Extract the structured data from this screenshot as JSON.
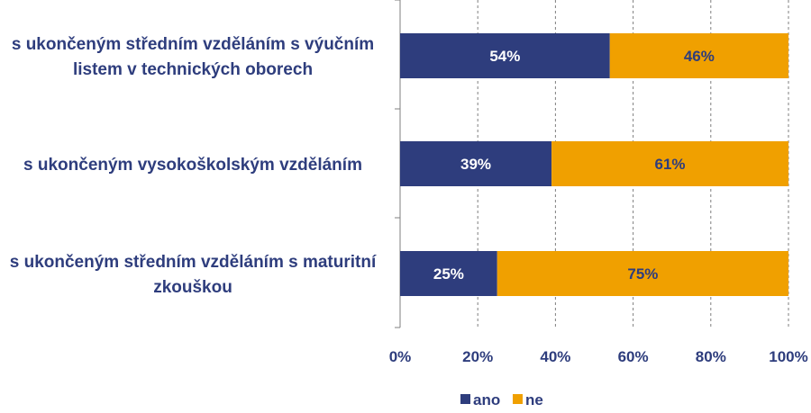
{
  "chart_data": {
    "type": "bar",
    "orientation": "horizontal",
    "stacked": true,
    "categories": [
      [
        "s ukončeným středním vzděláním s výučním",
        "listem v technických oborech"
      ],
      [
        "s ukončeným vysokoškolským vzděláním"
      ],
      [
        "s ukončeným středním vzděláním s maturitní",
        "zkouškou"
      ]
    ],
    "series": [
      {
        "name": "ano",
        "values": [
          54,
          39,
          25
        ],
        "labels": [
          "54%",
          "39%",
          "25%"
        ],
        "color": "#2E3D7D"
      },
      {
        "name": "ne",
        "values": [
          46,
          61,
          75
        ],
        "labels": [
          "46%",
          "61%",
          "75%"
        ],
        "color": "#F0A000"
      }
    ],
    "xlim": [
      0,
      100
    ],
    "xticks": [
      0,
      20,
      40,
      60,
      80,
      100
    ],
    "xtick_labels": [
      "0%",
      "20%",
      "40%",
      "60%",
      "80%",
      "100%"
    ],
    "grid": "vertical dashed",
    "legend_position": "bottom",
    "colors": {
      "text": "#2E3D7D",
      "grid": "#7F7F7F",
      "axis": "#7F7F7F"
    }
  }
}
